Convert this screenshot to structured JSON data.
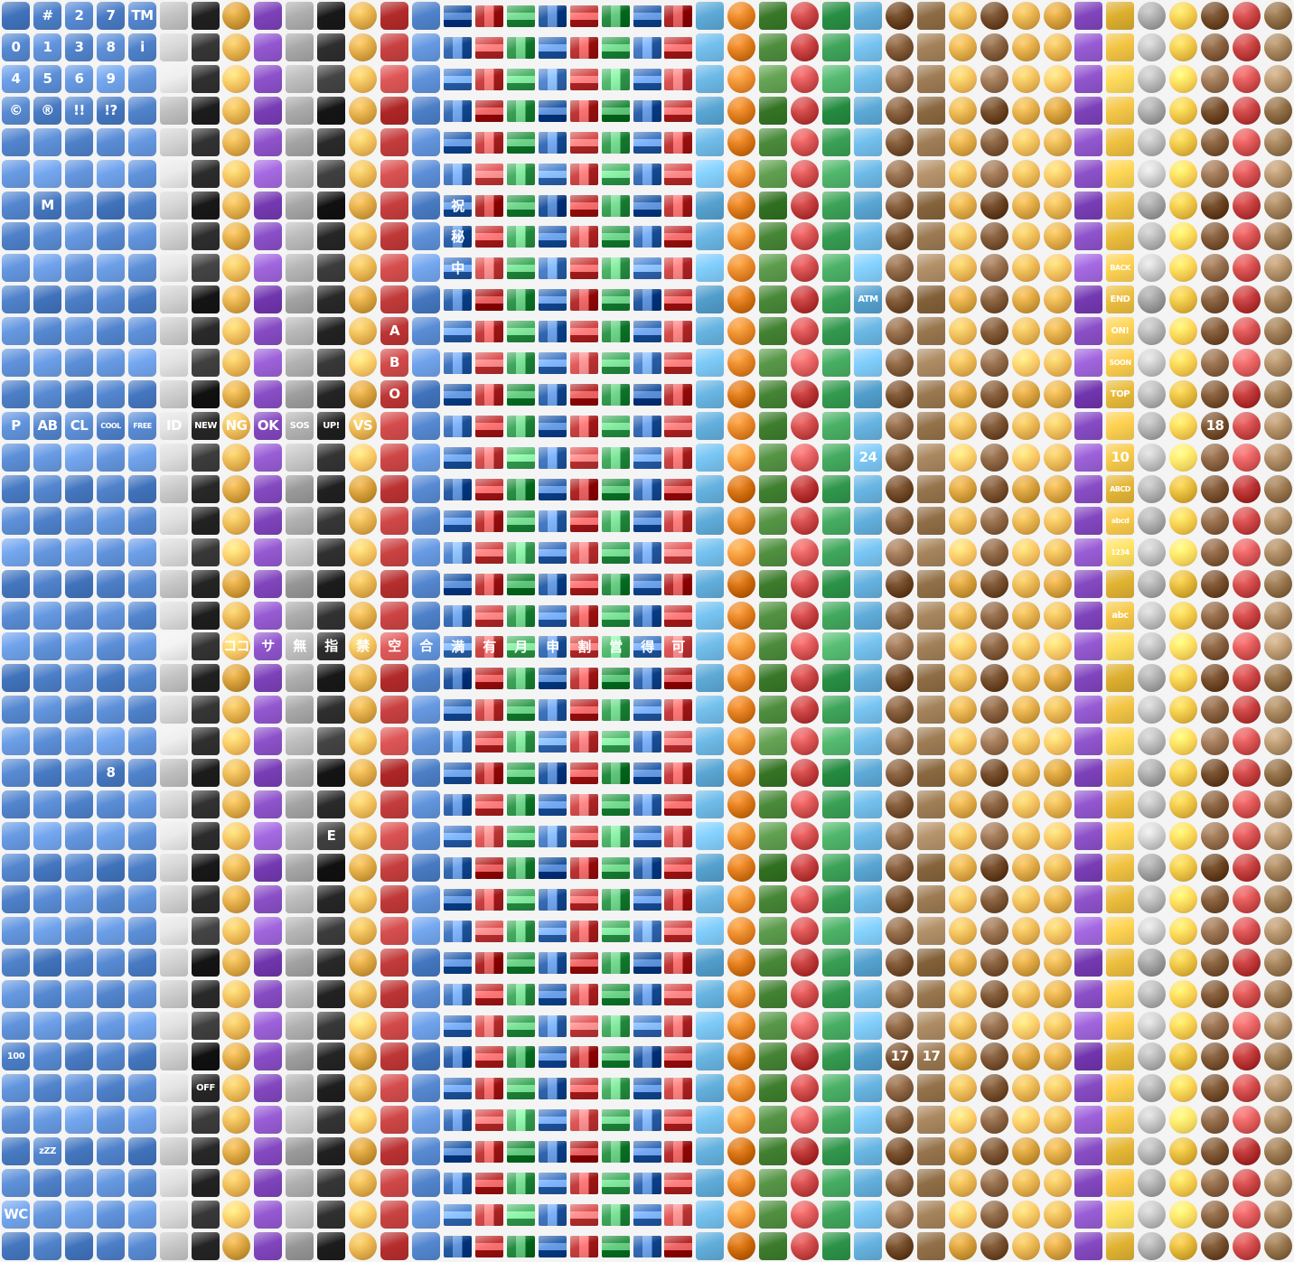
{
  "sheet": {
    "background": "#f4f4f4",
    "columns": 41,
    "rows": 40
  },
  "palette": [
    "#f4f4f4",
    "#e8b04a",
    "#f7c948",
    "#5a8dd6",
    "#c94040",
    "#8b4fc8",
    "#4a8a3a",
    "#2a2a2a",
    "#7a5230",
    "#3a6fb8",
    "#e07b1a",
    "#d9d9d9",
    "#f6a9c2",
    "#6bb8e6",
    "#9c7a52",
    "#3ea55a",
    "#b0b0b0"
  ],
  "column_styles": [
    {
      "base": 3,
      "shape": "key"
    },
    {
      "base": 3,
      "shape": "key"
    },
    {
      "base": 3,
      "shape": "key"
    },
    {
      "base": 3,
      "shape": "key"
    },
    {
      "base": 3,
      "shape": "key"
    },
    {
      "base": 11,
      "shape": "tile"
    },
    {
      "base": 7,
      "shape": "tile"
    },
    {
      "base": 1,
      "shape": "round"
    },
    {
      "base": 5,
      "shape": "key"
    },
    {
      "base": 16,
      "shape": "tile"
    },
    {
      "base": 7,
      "shape": "tile"
    },
    {
      "base": 1,
      "shape": "round"
    },
    {
      "base": 4,
      "shape": "key"
    },
    {
      "base": 3,
      "shape": "key"
    },
    {
      "base": 9,
      "shape": "flag"
    },
    {
      "base": 4,
      "shape": "flag"
    },
    {
      "base": 15,
      "shape": "flag"
    },
    {
      "base": 9,
      "shape": "flag"
    },
    {
      "base": 4,
      "shape": "flag"
    },
    {
      "base": 15,
      "shape": "flag"
    },
    {
      "base": 9,
      "shape": "flag"
    },
    {
      "base": 4,
      "shape": "flag"
    },
    {
      "base": 13,
      "shape": "tile"
    },
    {
      "base": 10,
      "shape": "round"
    },
    {
      "base": 6,
      "shape": "tile"
    },
    {
      "base": 4,
      "shape": "round"
    },
    {
      "base": 15,
      "shape": "tile"
    },
    {
      "base": 13,
      "shape": "tile"
    },
    {
      "base": 8,
      "shape": "round"
    },
    {
      "base": 14,
      "shape": "tile"
    },
    {
      "base": 1,
      "shape": "round"
    },
    {
      "base": 8,
      "shape": "round"
    },
    {
      "base": 1,
      "shape": "round"
    },
    {
      "base": 1,
      "shape": "round"
    },
    {
      "base": 5,
      "shape": "tile"
    },
    {
      "base": 2,
      "shape": "tile"
    },
    {
      "base": 16,
      "shape": "round"
    },
    {
      "base": 2,
      "shape": "round"
    },
    {
      "base": 8,
      "shape": "round"
    },
    {
      "base": 4,
      "shape": "round"
    },
    {
      "base": 14,
      "shape": "round"
    }
  ],
  "row_tones": [
    0,
    1,
    2,
    0,
    1,
    2,
    0,
    1,
    2,
    0,
    1,
    2,
    0,
    1,
    2,
    0,
    1,
    2,
    0,
    1,
    2,
    0,
    1,
    2,
    0,
    1,
    2,
    0,
    1,
    2,
    0,
    1,
    2,
    0,
    1,
    2,
    0,
    1,
    2,
    0
  ],
  "labels": [
    {
      "r": 0,
      "c": 1,
      "text": "#"
    },
    {
      "r": 0,
      "c": 2,
      "text": "2"
    },
    {
      "r": 0,
      "c": 3,
      "text": "7"
    },
    {
      "r": 0,
      "c": 4,
      "text": "TM"
    },
    {
      "r": 1,
      "c": 0,
      "text": "0"
    },
    {
      "r": 1,
      "c": 1,
      "text": "1"
    },
    {
      "r": 1,
      "c": 2,
      "text": "3"
    },
    {
      "r": 1,
      "c": 3,
      "text": "8"
    },
    {
      "r": 1,
      "c": 4,
      "text": "i"
    },
    {
      "r": 2,
      "c": 0,
      "text": "4"
    },
    {
      "r": 2,
      "c": 1,
      "text": "5"
    },
    {
      "r": 2,
      "c": 2,
      "text": "6"
    },
    {
      "r": 2,
      "c": 3,
      "text": "9"
    },
    {
      "r": 3,
      "c": 0,
      "text": "©"
    },
    {
      "r": 3,
      "c": 1,
      "text": "®"
    },
    {
      "r": 3,
      "c": 2,
      "text": "!!"
    },
    {
      "r": 3,
      "c": 3,
      "text": "!?"
    },
    {
      "r": 6,
      "c": 1,
      "text": "M"
    },
    {
      "r": 10,
      "c": 12,
      "text": "A"
    },
    {
      "r": 11,
      "c": 12,
      "text": "B"
    },
    {
      "r": 12,
      "c": 12,
      "text": "O"
    },
    {
      "r": 13,
      "c": 0,
      "text": "P"
    },
    {
      "r": 13,
      "c": 1,
      "text": "AB"
    },
    {
      "r": 13,
      "c": 2,
      "text": "CL"
    },
    {
      "r": 13,
      "c": 3,
      "text": "COOL"
    },
    {
      "r": 13,
      "c": 4,
      "text": "FREE"
    },
    {
      "r": 13,
      "c": 5,
      "text": "ID"
    },
    {
      "r": 13,
      "c": 6,
      "text": "NEW"
    },
    {
      "r": 13,
      "c": 7,
      "text": "NG"
    },
    {
      "r": 13,
      "c": 8,
      "text": "OK"
    },
    {
      "r": 13,
      "c": 9,
      "text": "SOS"
    },
    {
      "r": 13,
      "c": 10,
      "text": "UP!"
    },
    {
      "r": 13,
      "c": 11,
      "text": "VS"
    },
    {
      "r": 20,
      "c": 7,
      "text": "ココ"
    },
    {
      "r": 20,
      "c": 8,
      "text": "サ"
    },
    {
      "r": 20,
      "c": 9,
      "text": "無"
    },
    {
      "r": 20,
      "c": 10,
      "text": "指"
    },
    {
      "r": 20,
      "c": 11,
      "text": "禁"
    },
    {
      "r": 20,
      "c": 12,
      "text": "空"
    },
    {
      "r": 20,
      "c": 13,
      "text": "合"
    },
    {
      "r": 20,
      "c": 14,
      "text": "満"
    },
    {
      "r": 20,
      "c": 15,
      "text": "有"
    },
    {
      "r": 20,
      "c": 16,
      "text": "月"
    },
    {
      "r": 20,
      "c": 17,
      "text": "申"
    },
    {
      "r": 20,
      "c": 18,
      "text": "割"
    },
    {
      "r": 20,
      "c": 19,
      "text": "営"
    },
    {
      "r": 20,
      "c": 20,
      "text": "得"
    },
    {
      "r": 20,
      "c": 21,
      "text": "可"
    },
    {
      "r": 6,
      "c": 14,
      "text": "祝"
    },
    {
      "r": 7,
      "c": 14,
      "text": "秘"
    },
    {
      "r": 8,
      "c": 14,
      "text": "中"
    },
    {
      "r": 9,
      "c": 27,
      "text": "ATM"
    },
    {
      "r": 8,
      "c": 35,
      "text": "BACK"
    },
    {
      "r": 9,
      "c": 35,
      "text": "END"
    },
    {
      "r": 10,
      "c": 35,
      "text": "ON!"
    },
    {
      "r": 11,
      "c": 35,
      "text": "SOON"
    },
    {
      "r": 12,
      "c": 35,
      "text": "TOP"
    },
    {
      "r": 14,
      "c": 35,
      "text": "10"
    },
    {
      "r": 15,
      "c": 35,
      "text": "ABCD"
    },
    {
      "r": 16,
      "c": 35,
      "text": "abcd"
    },
    {
      "r": 17,
      "c": 35,
      "text": "1234"
    },
    {
      "r": 19,
      "c": 35,
      "text": "abc"
    },
    {
      "r": 24,
      "c": 3,
      "text": "8"
    },
    {
      "r": 33,
      "c": 0,
      "text": "100"
    },
    {
      "r": 33,
      "c": 28,
      "text": "17"
    },
    {
      "r": 33,
      "c": 29,
      "text": "17"
    },
    {
      "r": 34,
      "c": 6,
      "text": "OFF"
    },
    {
      "r": 38,
      "c": 0,
      "text": "WC"
    },
    {
      "r": 36,
      "c": 1,
      "text": "zZZ"
    },
    {
      "r": 13,
      "c": 38,
      "text": "18"
    },
    {
      "r": 26,
      "c": 10,
      "text": "E"
    },
    {
      "r": 14,
      "c": 27,
      "text": "24"
    }
  ]
}
